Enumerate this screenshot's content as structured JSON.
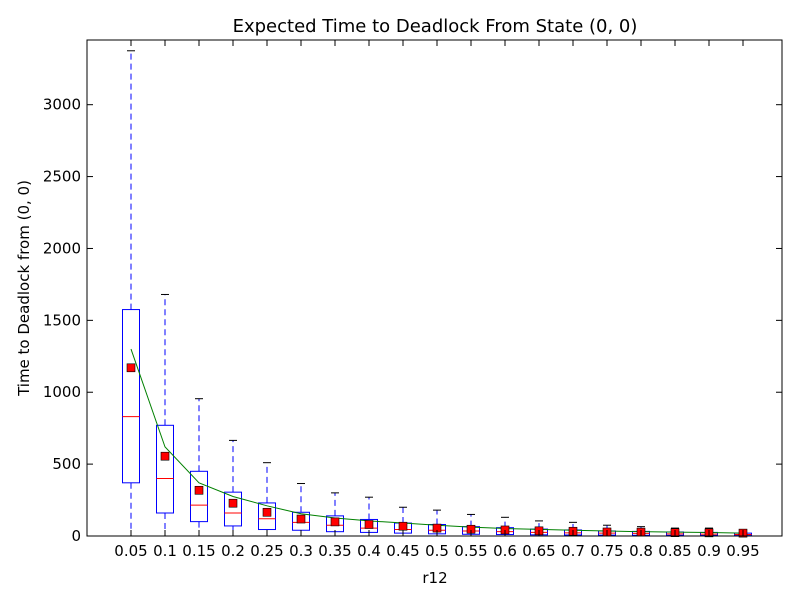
{
  "chart_data": {
    "type": "box",
    "title": "Expected Time to Deadlock From State (0, 0)",
    "xlabel": "r12",
    "ylabel": "Time to Deadlock from (0, 0)",
    "ylim": [
      0,
      3450
    ],
    "yticks": [
      0,
      500,
      1000,
      1500,
      2000,
      2500,
      3000
    ],
    "categories": [
      "0.05",
      "0.1",
      "0.15",
      "0.2",
      "0.25",
      "0.3",
      "0.35",
      "0.4",
      "0.45",
      "0.5",
      "0.55",
      "0.6",
      "0.65",
      "0.7",
      "0.75",
      "0.8",
      "0.85",
      "0.9",
      "0.95"
    ],
    "boxes": [
      {
        "whislo": 0,
        "q1": 370,
        "med": 830,
        "q3": 1575,
        "whishi": 3375,
        "mean": 1170
      },
      {
        "whislo": 0,
        "q1": 160,
        "med": 400,
        "q3": 770,
        "whishi": 1680,
        "mean": 555
      },
      {
        "whislo": 0,
        "q1": 100,
        "med": 215,
        "q3": 450,
        "whishi": 955,
        "mean": 318
      },
      {
        "whislo": 0,
        "q1": 70,
        "med": 160,
        "q3": 305,
        "whishi": 665,
        "mean": 228
      },
      {
        "whislo": 0,
        "q1": 45,
        "med": 120,
        "q3": 230,
        "whishi": 510,
        "mean": 165
      },
      {
        "whislo": 0,
        "q1": 40,
        "med": 95,
        "q3": 165,
        "whishi": 365,
        "mean": 118
      },
      {
        "whislo": 0,
        "q1": 30,
        "med": 75,
        "q3": 140,
        "whishi": 300,
        "mean": 98
      },
      {
        "whislo": 0,
        "q1": 25,
        "med": 55,
        "q3": 115,
        "whishi": 270,
        "mean": 80
      },
      {
        "whislo": 0,
        "q1": 20,
        "med": 45,
        "q3": 90,
        "whishi": 200,
        "mean": 68
      },
      {
        "whislo": 0,
        "q1": 15,
        "med": 40,
        "q3": 80,
        "whishi": 180,
        "mean": 55
      },
      {
        "whislo": 0,
        "q1": 12,
        "med": 35,
        "q3": 65,
        "whishi": 150,
        "mean": 47
      },
      {
        "whislo": 0,
        "q1": 10,
        "med": 30,
        "q3": 58,
        "whishi": 130,
        "mean": 42
      },
      {
        "whislo": 0,
        "q1": 8,
        "med": 25,
        "q3": 48,
        "whishi": 105,
        "mean": 36
      },
      {
        "whislo": 0,
        "q1": 7,
        "med": 22,
        "q3": 42,
        "whishi": 95,
        "mean": 33
      },
      {
        "whislo": 0,
        "q1": 6,
        "med": 20,
        "q3": 35,
        "whishi": 75,
        "mean": 28
      },
      {
        "whislo": 0,
        "q1": 5,
        "med": 18,
        "q3": 32,
        "whishi": 65,
        "mean": 27
      },
      {
        "whislo": 0,
        "q1": 5,
        "med": 15,
        "q3": 28,
        "whishi": 55,
        "mean": 23
      },
      {
        "whislo": 0,
        "q1": 4,
        "med": 13,
        "q3": 25,
        "whishi": 55,
        "mean": 22
      },
      {
        "whislo": 0,
        "q1": 3,
        "med": 10,
        "q3": 20,
        "whishi": 30,
        "mean": 20
      }
    ],
    "line": {
      "values": [
        1300,
        620,
        370,
        275,
        210,
        155,
        125,
        105,
        90,
        75,
        62,
        52,
        46,
        40,
        35,
        30,
        27,
        24,
        20
      ]
    },
    "colors": {
      "box": "#0000ff",
      "median": "#ff0000",
      "mean_marker": "#ff0000",
      "line": "#008000",
      "axes": "#000000"
    },
    "grid": false,
    "legend": "none"
  }
}
